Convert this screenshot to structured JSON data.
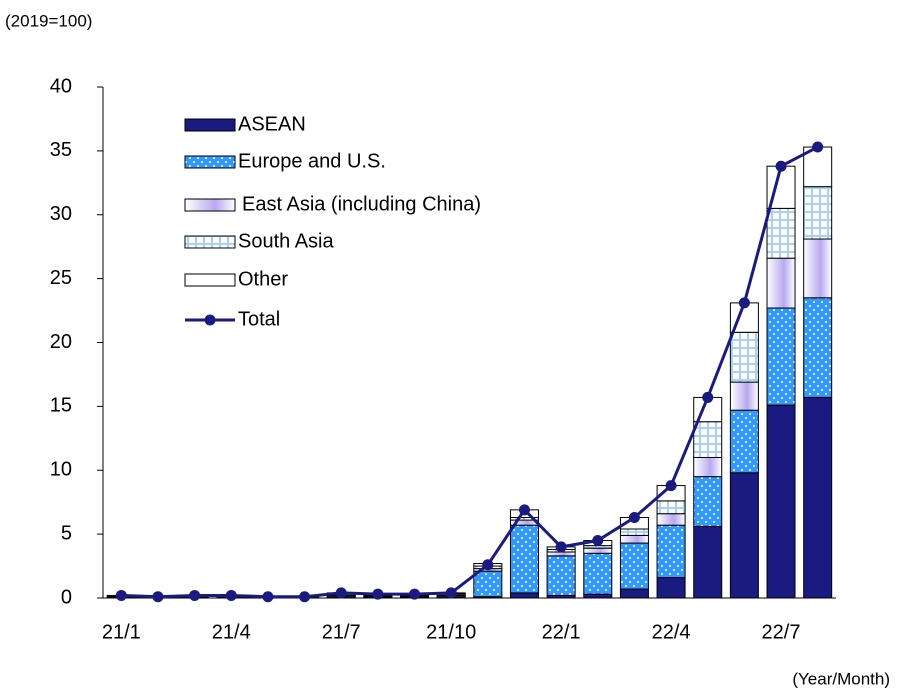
{
  "chart_data": {
    "type": "bar",
    "stacked": true,
    "subtitle": "(2019=100)",
    "x_label": "(Year/Month)",
    "categories": [
      "21/1",
      null,
      null,
      "21/4",
      null,
      null,
      "21/7",
      null,
      null,
      "21/10",
      null,
      null,
      "22/1",
      null,
      null,
      "22/4",
      null,
      null,
      "22/7",
      null
    ],
    "series": [
      {
        "name": "ASEAN",
        "color": "#1a1a80",
        "values": [
          0.05,
          0.02,
          0.05,
          0.05,
          0.02,
          0.02,
          0.1,
          0.08,
          0.08,
          0.1,
          0.1,
          0.4,
          0.2,
          0.3,
          0.7,
          1.6,
          5.6,
          9.8,
          15.1,
          15.7
        ]
      },
      {
        "name": "Europe and U.S.",
        "color": "#3399ff",
        "values": [
          0.05,
          0.03,
          0.05,
          0.05,
          0.03,
          0.03,
          0.1,
          0.08,
          0.08,
          0.1,
          2.0,
          5.3,
          3.1,
          3.2,
          3.6,
          4.1,
          3.9,
          4.9,
          7.6,
          7.8
        ]
      },
      {
        "name": "East Asia (including China)",
        "color": "#b8a8f0",
        "values": [
          0.05,
          0.02,
          0.05,
          0.05,
          0.02,
          0.02,
          0.1,
          0.06,
          0.06,
          0.1,
          0.2,
          0.4,
          0.3,
          0.4,
          0.6,
          0.9,
          1.5,
          2.2,
          3.9,
          4.6
        ]
      },
      {
        "name": "South Asia",
        "color": "#a8d0ff",
        "values": [
          0.02,
          0.01,
          0.02,
          0.02,
          0.01,
          0.01,
          0.05,
          0.04,
          0.04,
          0.05,
          0.2,
          0.2,
          0.2,
          0.2,
          0.5,
          1.0,
          2.8,
          3.9,
          3.9,
          4.1
        ]
      },
      {
        "name": "Other",
        "color": "#ffffff",
        "values": [
          0.03,
          0.02,
          0.03,
          0.03,
          0.02,
          0.02,
          0.05,
          0.04,
          0.04,
          0.05,
          0.2,
          0.6,
          0.2,
          0.4,
          0.9,
          1.2,
          1.9,
          2.3,
          3.3,
          3.1
        ]
      },
      {
        "name": "Total",
        "type": "line",
        "color": "#1a1a80",
        "values": [
          0.2,
          0.1,
          0.2,
          0.2,
          0.1,
          0.1,
          0.4,
          0.3,
          0.3,
          0.4,
          2.6,
          6.9,
          4.0,
          4.5,
          6.3,
          8.8,
          15.7,
          23.1,
          33.8,
          35.3
        ]
      }
    ],
    "ylim": [
      0,
      40
    ],
    "yticks": [
      0,
      5,
      10,
      15,
      20,
      25,
      30,
      35,
      40
    ]
  }
}
